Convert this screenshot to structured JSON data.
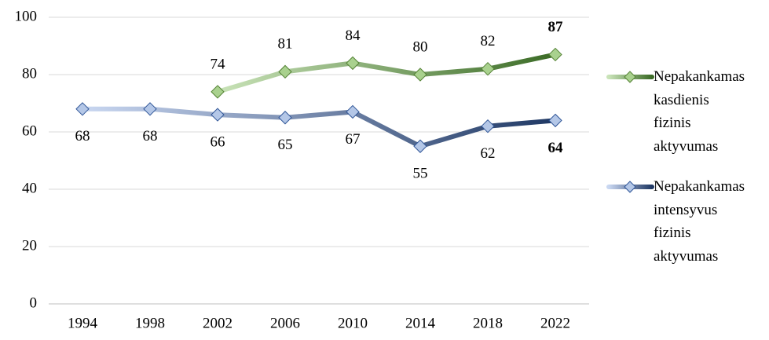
{
  "chart_data": {
    "type": "line",
    "categories": [
      "1994",
      "1998",
      "2002",
      "2006",
      "2010",
      "2014",
      "2018",
      "2022"
    ],
    "series": [
      {
        "name": "Nepakankamas kasdienis fizinis aktyvumas",
        "color": "#3b6b26",
        "light_color": "#c9e3b8",
        "values": [
          null,
          null,
          74,
          81,
          84,
          80,
          82,
          87
        ]
      },
      {
        "name": "Nepakankamas intensyvus fizinis aktyvumas",
        "color": "#1f3864",
        "light_color": "#c9d7f1",
        "values": [
          68,
          68,
          66,
          65,
          67,
          55,
          62,
          64
        ]
      }
    ],
    "ylim": [
      0,
      100
    ],
    "yticks": [
      0,
      20,
      40,
      60,
      80,
      100
    ],
    "grid": true,
    "legend": "right"
  }
}
